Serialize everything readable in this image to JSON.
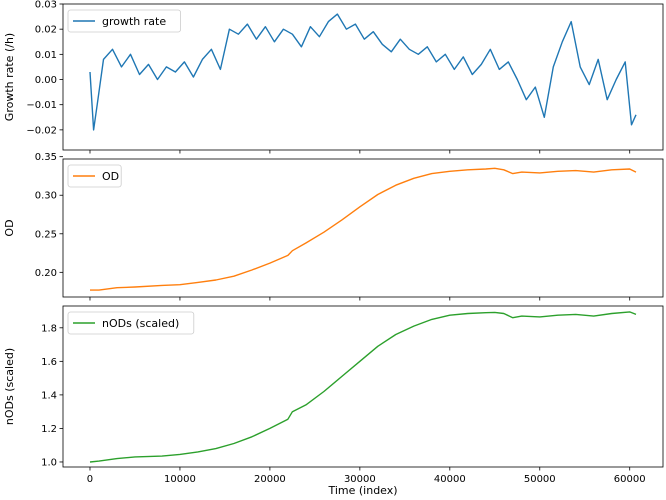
{
  "chart_data": [
    {
      "type": "line",
      "ylabel": "Growth rate (/h)",
      "ylim": [
        -0.028,
        0.03
      ],
      "yticks": [
        -0.02,
        -0.01,
        0.0,
        0.01,
        0.02,
        0.03
      ],
      "ytick_labels": [
        "−0.02",
        "−0.01",
        "0.00",
        "0.01",
        "0.02",
        "0.03"
      ],
      "legend_position": "top-left",
      "show_xtick_labels": false,
      "series": [
        {
          "name": "growth rate",
          "color": "#1f77b4",
          "x": [
            0,
            400,
            800,
            1500,
            2500,
            3500,
            4500,
            5500,
            6500,
            7500,
            8500,
            9500,
            10500,
            11500,
            12500,
            13500,
            14500,
            15500,
            16500,
            17500,
            18500,
            19500,
            20500,
            21500,
            22500,
            23500,
            24500,
            25500,
            26500,
            27500,
            28500,
            29500,
            30500,
            31500,
            32500,
            33500,
            34500,
            35500,
            36500,
            37500,
            38500,
            39500,
            40500,
            41500,
            42500,
            43500,
            44500,
            45500,
            46500,
            47500,
            48500,
            49500,
            50500,
            51500,
            52500,
            53500,
            54500,
            55500,
            56500,
            57500,
            58500,
            59500,
            60200,
            60700
          ],
          "y": [
            0.003,
            -0.02,
            -0.01,
            0.008,
            0.012,
            0.005,
            0.01,
            0.002,
            0.006,
            0.0,
            0.005,
            0.003,
            0.007,
            0.001,
            0.008,
            0.012,
            0.004,
            0.02,
            0.018,
            0.022,
            0.016,
            0.021,
            0.015,
            0.02,
            0.018,
            0.013,
            0.021,
            0.017,
            0.023,
            0.026,
            0.02,
            0.022,
            0.016,
            0.019,
            0.014,
            0.011,
            0.016,
            0.012,
            0.01,
            0.013,
            0.007,
            0.01,
            0.004,
            0.009,
            0.002,
            0.006,
            0.012,
            0.004,
            0.007,
            0.0,
            -0.008,
            -0.003,
            -0.015,
            0.005,
            0.015,
            0.023,
            0.005,
            -0.002,
            0.008,
            -0.008,
            0.0,
            0.007,
            -0.018,
            -0.014
          ]
        }
      ]
    },
    {
      "type": "line",
      "ylabel": "OD",
      "ylim": [
        0.168,
        0.347
      ],
      "yticks": [
        0.2,
        0.25,
        0.3,
        0.35
      ],
      "ytick_labels": [
        "0.20",
        "0.25",
        "0.30",
        "0.35"
      ],
      "legend_position": "top-left",
      "show_xtick_labels": false,
      "series": [
        {
          "name": "OD",
          "color": "#ff7f0e",
          "x": [
            0,
            1000,
            3000,
            5000,
            8000,
            10000,
            12000,
            14000,
            16000,
            18000,
            20000,
            22000,
            22500,
            24000,
            26000,
            28000,
            30000,
            32000,
            34000,
            36000,
            38000,
            40000,
            42000,
            44000,
            45000,
            46000,
            47000,
            48000,
            50000,
            52000,
            54000,
            56000,
            58000,
            60000,
            60700
          ],
          "y": [
            0.177,
            0.177,
            0.18,
            0.181,
            0.183,
            0.184,
            0.187,
            0.19,
            0.195,
            0.203,
            0.212,
            0.222,
            0.228,
            0.238,
            0.252,
            0.268,
            0.285,
            0.301,
            0.313,
            0.322,
            0.328,
            0.331,
            0.333,
            0.334,
            0.335,
            0.333,
            0.328,
            0.33,
            0.329,
            0.331,
            0.332,
            0.33,
            0.333,
            0.334,
            0.33
          ]
        }
      ]
    },
    {
      "type": "line",
      "ylabel": "nODs (scaled)",
      "xlabel": "Time (index)",
      "ylim": [
        0.97,
        1.93
      ],
      "yticks": [
        1.0,
        1.2,
        1.4,
        1.6,
        1.8
      ],
      "ytick_labels": [
        "1.0",
        "1.2",
        "1.4",
        "1.6",
        "1.8"
      ],
      "xlim": [
        -3000,
        63700
      ],
      "xticks": [
        0,
        10000,
        20000,
        30000,
        40000,
        50000,
        60000
      ],
      "xtick_labels": [
        "0",
        "10000",
        "20000",
        "30000",
        "40000",
        "50000",
        "60000"
      ],
      "legend_position": "top-left",
      "show_xtick_labels": true,
      "series": [
        {
          "name": "nODs (scaled)",
          "color": "#2ca02c",
          "x": [
            0,
            1000,
            3000,
            5000,
            8000,
            10000,
            12000,
            14000,
            16000,
            18000,
            20000,
            22000,
            22500,
            24000,
            26000,
            28000,
            30000,
            32000,
            34000,
            36000,
            38000,
            40000,
            42000,
            44000,
            45000,
            46000,
            47000,
            48000,
            50000,
            52000,
            54000,
            56000,
            58000,
            60000,
            60700
          ],
          "y": [
            1.0,
            1.005,
            1.02,
            1.03,
            1.035,
            1.045,
            1.06,
            1.08,
            1.11,
            1.15,
            1.2,
            1.255,
            1.3,
            1.34,
            1.42,
            1.51,
            1.6,
            1.69,
            1.76,
            1.81,
            1.85,
            1.875,
            1.885,
            1.89,
            1.892,
            1.885,
            1.86,
            1.87,
            1.865,
            1.875,
            1.88,
            1.87,
            1.885,
            1.895,
            1.88
          ]
        }
      ]
    }
  ]
}
